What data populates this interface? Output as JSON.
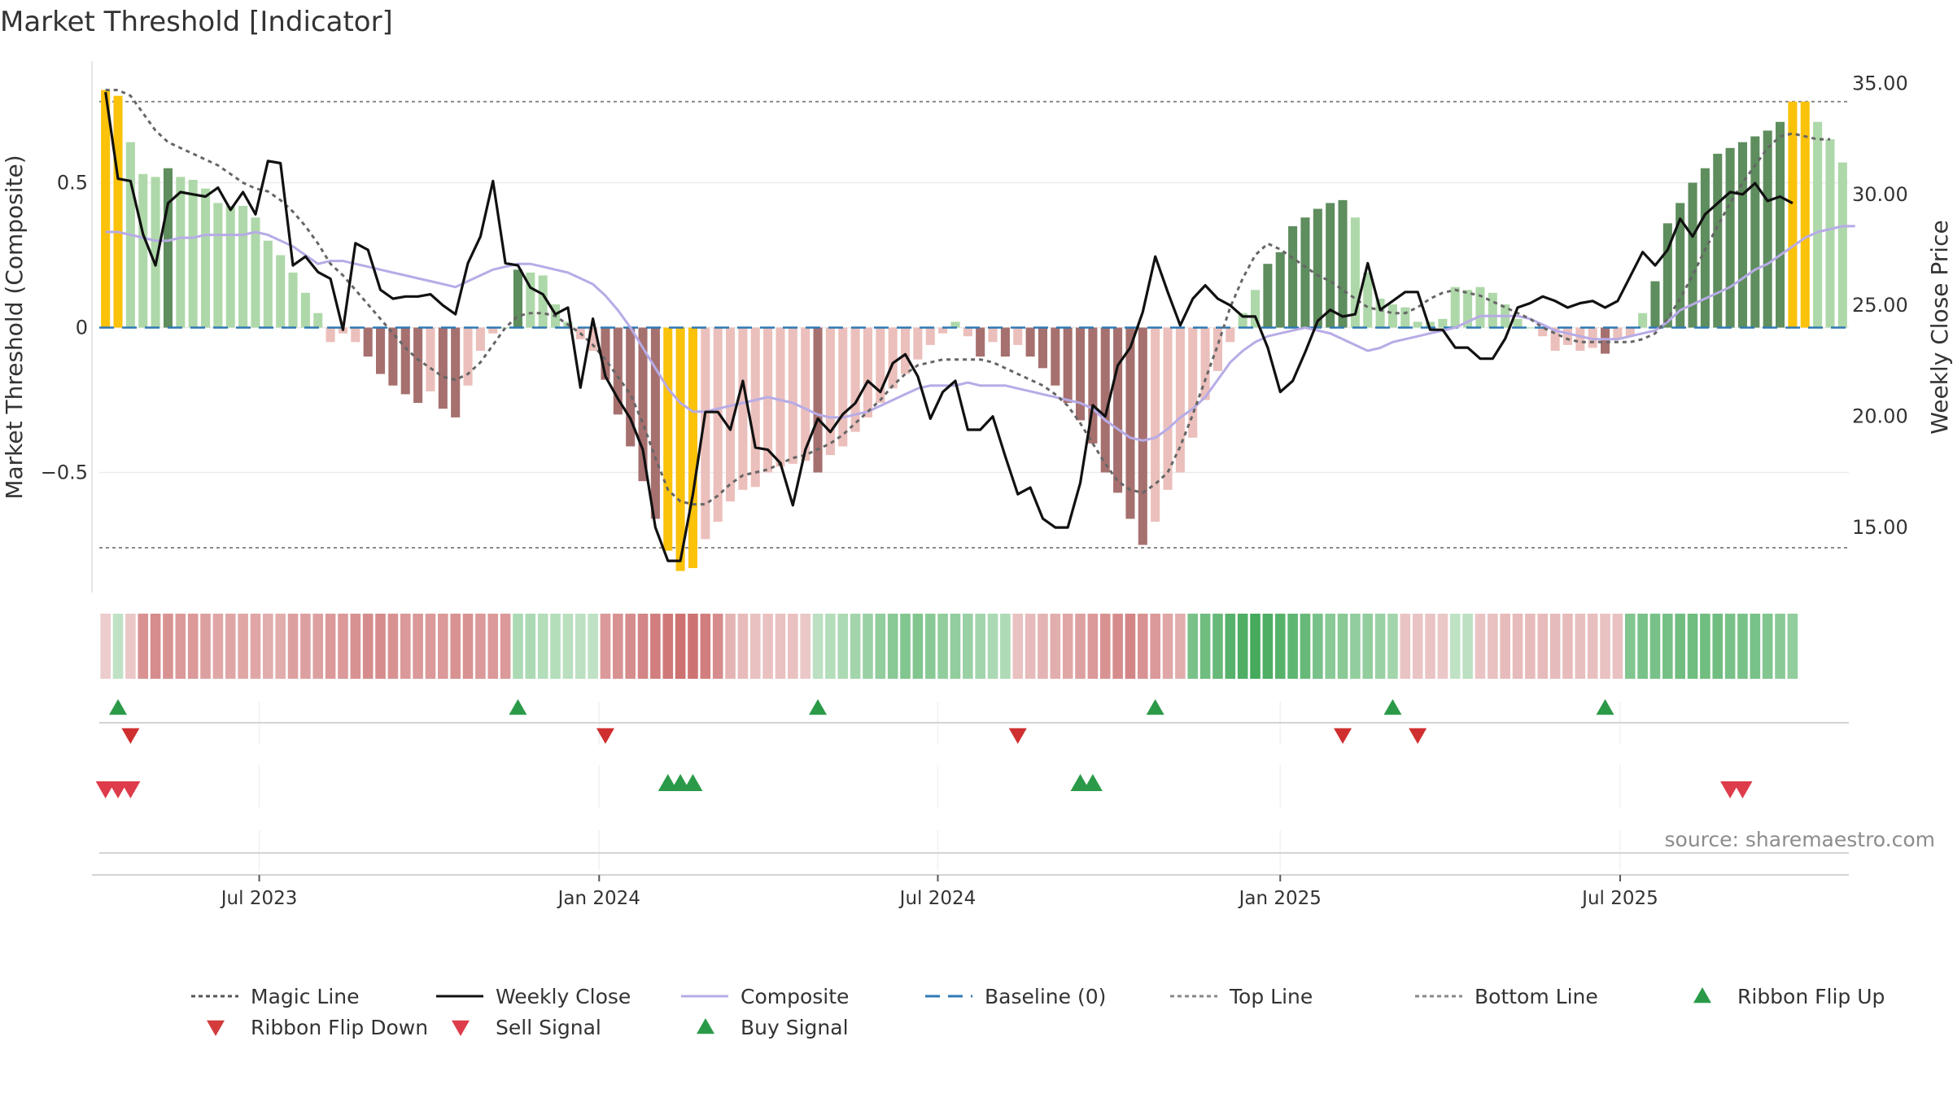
{
  "chart_data": {
    "type": "bar",
    "title": "Market Threshold [Indicator]",
    "ylabel_left": "Market Threshold (Composite)",
    "ylabel_right": "Weekly Close Price",
    "ylim_left": [
      -0.92,
      0.92
    ],
    "ylim_right": [
      12.0,
      36.0
    ],
    "yticks_left": [
      {
        "value": 0.5,
        "label": "0.5"
      },
      {
        "value": 0,
        "label": "0"
      },
      {
        "value": -0.5,
        "label": "−0.5"
      }
    ],
    "yticks_right": [
      {
        "value": 35,
        "label": "35.00"
      },
      {
        "value": 30,
        "label": "30.00"
      },
      {
        "value": 25,
        "label": "25.00"
      },
      {
        "value": 20,
        "label": "20.00"
      },
      {
        "value": 15,
        "label": "15.00"
      }
    ],
    "x_range_index": [
      0,
      134
    ],
    "xticks": [
      {
        "index": 12.3,
        "label": "Jul 2023"
      },
      {
        "index": 39.5,
        "label": "Jan 2024"
      },
      {
        "index": 66.6,
        "label": "Jul 2024"
      },
      {
        "index": 94.0,
        "label": "Jan 2025"
      },
      {
        "index": 121.2,
        "label": "Jul 2025"
      }
    ],
    "top_line": 0.78,
    "bottom_line": -0.76,
    "baseline": 0,
    "bar_colors": {
      "dark_green": "#5e8d5e",
      "light_green": "#aed8a9",
      "dark_red": "#a6706e",
      "light_red": "#ebbfbb",
      "gold": "#fbc20a"
    },
    "series": [
      {
        "name": "Composite",
        "color": "#b7abe6"
      },
      {
        "name": "Magic Line",
        "color": "#666666"
      },
      {
        "name": "Weekly Close",
        "color": "#111111"
      }
    ],
    "bars": [],
    "composite": [],
    "magic_line": [],
    "weekly_close": [],
    "ribbon": [],
    "ribbon_flip_up_index": [
      1,
      33,
      57,
      84,
      103,
      120
    ],
    "ribbon_flip_down_index": [
      2,
      40,
      73,
      99,
      105
    ],
    "buy_signal_index": [
      45,
      46,
      47,
      78,
      79
    ],
    "sell_signal_index": [
      0,
      1,
      2,
      130,
      131
    ],
    "legend": [
      {
        "label": "Magic Line",
        "kind": "dotted",
        "color": "#555555"
      },
      {
        "label": "Weekly Close",
        "kind": "solid",
        "color": "#111111"
      },
      {
        "label": "Composite",
        "kind": "solid",
        "color": "#b7abe6"
      },
      {
        "label": "Baseline (0)",
        "kind": "dashed",
        "color": "#2f78b4"
      },
      {
        "label": "Top Line",
        "kind": "dotted",
        "color": "#888888"
      },
      {
        "label": "Bottom Line",
        "kind": "dotted",
        "color": "#888888"
      },
      {
        "label": "Ribbon Flip Up",
        "kind": "up",
        "color": "#2b9a48"
      },
      {
        "label": "Ribbon Flip Down",
        "kind": "down",
        "color": "#d43b3b"
      },
      {
        "label": "Sell Signal",
        "kind": "down",
        "color": "#de3c4b"
      },
      {
        "label": "Buy Signal",
        "kind": "up",
        "color": "#2b9a48"
      }
    ],
    "source": "source: sharemaestro.com"
  }
}
